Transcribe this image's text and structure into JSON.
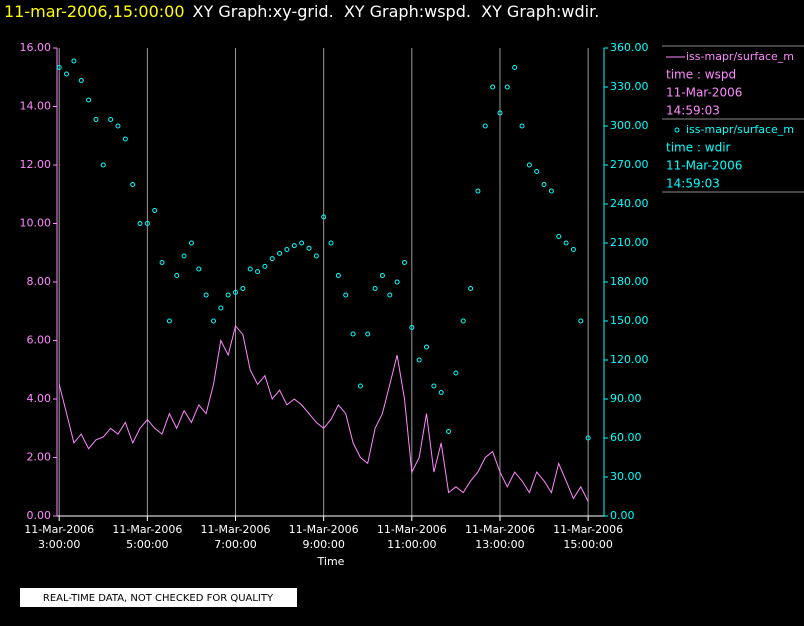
{
  "chart_data": {
    "type": "line",
    "title": "11-mar-2006,15:00:00",
    "subtitle": "XY Graph:xy-grid.  XY Graph:wspd.  XY Graph:wdir.",
    "x_label": "Time",
    "footer": "REAL-TIME DATA, NOT CHECKED FOR QUALITY",
    "grid": true,
    "legend": "right",
    "xlim": [
      2.95,
      15.36
    ],
    "xticks": [
      {
        "value": 3,
        "label": [
          "11-Mar-2006",
          "3:00:00"
        ]
      },
      {
        "value": 5,
        "label": [
          "11-Mar-2006",
          "5:00:00"
        ]
      },
      {
        "value": 7,
        "label": [
          "11-Mar-2006",
          "7:00:00"
        ]
      },
      {
        "value": 9,
        "label": [
          "11-Mar-2006",
          "9:00:00"
        ]
      },
      {
        "value": 11,
        "label": [
          "11-Mar-2006",
          "11:00:00"
        ]
      },
      {
        "value": 13,
        "label": [
          "11-Mar-2006",
          "13:00:00"
        ]
      },
      {
        "value": 15,
        "label": [
          "11-Mar-2006",
          "15:00:00"
        ]
      }
    ],
    "ylim": [
      0,
      16
    ],
    "yticks": [
      {
        "value": 0,
        "label": "0.00"
      },
      {
        "value": 2,
        "label": "2.00"
      },
      {
        "value": 4,
        "label": "4.00"
      },
      {
        "value": 6,
        "label": "6.00"
      },
      {
        "value": 8,
        "label": "8.00"
      },
      {
        "value": 10,
        "label": "10.00"
      },
      {
        "value": 12,
        "label": "12.00"
      },
      {
        "value": 14,
        "label": "14.00"
      },
      {
        "value": 16,
        "label": "16.00"
      }
    ],
    "y2lim": [
      0,
      360
    ],
    "y2ticks": [
      {
        "value": 0,
        "label": "0.00"
      },
      {
        "value": 30,
        "label": "30.00"
      },
      {
        "value": 60,
        "label": "60.00"
      },
      {
        "value": 90,
        "label": "90.00"
      },
      {
        "value": 120,
        "label": "120.00"
      },
      {
        "value": 150,
        "label": "150.00"
      },
      {
        "value": 180,
        "label": "180.00"
      },
      {
        "value": 210,
        "label": "210.00"
      },
      {
        "value": 240,
        "label": "240.00"
      },
      {
        "value": 270,
        "label": "270.00"
      },
      {
        "value": 300,
        "label": "300.00"
      },
      {
        "value": 330,
        "label": "330.00"
      },
      {
        "value": 360,
        "label": "360.00"
      }
    ],
    "x": [
      3,
      3.1667,
      3.3333,
      3.5,
      3.6667,
      3.8333,
      4,
      4.1667,
      4.3333,
      4.5,
      4.6667,
      4.8333,
      5,
      5.1667,
      5.3333,
      5.5,
      5.6667,
      5.8333,
      6,
      6.1667,
      6.3333,
      6.5,
      6.6667,
      6.8333,
      7,
      7.1667,
      7.3333,
      7.5,
      7.6667,
      7.8333,
      8,
      8.1667,
      8.3333,
      8.5,
      8.6667,
      8.8333,
      9,
      9.1667,
      9.3333,
      9.5,
      9.6667,
      9.8333,
      10,
      10.1667,
      10.3333,
      10.5,
      10.6667,
      10.8333,
      11,
      11.1667,
      11.3333,
      11.5,
      11.6667,
      11.8333,
      12,
      12.1667,
      12.3333,
      12.5,
      12.6667,
      12.8333,
      13,
      13.1667,
      13.3333,
      13.5,
      13.6667,
      13.8333,
      14,
      14.1667,
      14.3333,
      14.5,
      14.6667,
      14.8333,
      15
    ],
    "series": [
      {
        "name": "iss-mapr/surface_m",
        "legend_lines": [
          "time : wspd",
          "11-Mar-2006",
          "14:59:03"
        ],
        "color": "#ff88ff",
        "style": "line",
        "values": [
          4.5,
          3.5,
          2.5,
          2.8,
          2.3,
          2.6,
          2.7,
          3.0,
          2.8,
          3.2,
          2.5,
          3.0,
          3.3,
          3.0,
          2.8,
          3.5,
          3.0,
          3.6,
          3.2,
          3.8,
          3.5,
          4.5,
          6.0,
          5.5,
          6.5,
          6.2,
          5.0,
          4.5,
          4.8,
          4.0,
          4.3,
          3.8,
          4.0,
          3.8,
          3.5,
          3.2,
          3.0,
          3.3,
          3.8,
          3.5,
          2.5,
          2.0,
          1.8,
          3.0,
          3.5,
          4.5,
          5.5,
          4.0,
          1.5,
          2.0,
          3.5,
          1.5,
          2.5,
          0.8,
          1.0,
          0.8,
          1.2,
          1.5,
          2.0,
          2.2,
          1.5,
          1.0,
          1.5,
          1.2,
          0.8,
          1.5,
          1.2,
          0.8,
          1.8,
          1.2,
          0.6,
          1.0,
          0.5
        ]
      },
      {
        "name": "iss-mapr/surface_m",
        "legend_lines": [
          "time : wdir",
          "11-Mar-2006",
          "14:59:03"
        ],
        "color": "#00ffff",
        "style": "scatter",
        "axis": "y2",
        "values": [
          345,
          340,
          350,
          335,
          320,
          305,
          270,
          305,
          300,
          290,
          255,
          225,
          225,
          235,
          195,
          150,
          185,
          200,
          210,
          190,
          170,
          150,
          160,
          170,
          172,
          175,
          190,
          188,
          192,
          198,
          202,
          205,
          208,
          210,
          206,
          200,
          230,
          210,
          185,
          170,
          140,
          100,
          140,
          175,
          185,
          170,
          180,
          195,
          145,
          120,
          130,
          100,
          95,
          65,
          110,
          150,
          175,
          250,
          300,
          330,
          310,
          330,
          345,
          300,
          270,
          265,
          255,
          250,
          215,
          210,
          205,
          150,
          60
        ]
      }
    ]
  }
}
